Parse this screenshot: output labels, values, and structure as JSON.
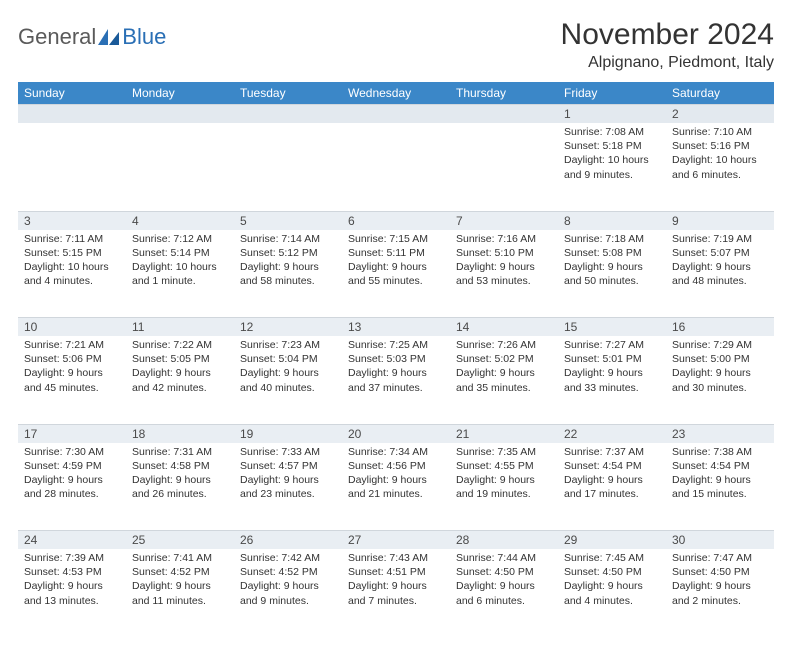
{
  "logo": {
    "general": "General",
    "blue": "Blue"
  },
  "title": "November 2024",
  "subtitle": "Alpignano, Piedmont, Italy",
  "colors": {
    "header_bg": "#3b87c8",
    "header_text": "#ffffff",
    "daynum_bg": "#e9eef3",
    "page_bg": "#ffffff",
    "text": "#333333",
    "logo_gray": "#5a5a5a",
    "logo_blue": "#2a6fb5"
  },
  "day_headers": [
    "Sunday",
    "Monday",
    "Tuesday",
    "Wednesday",
    "Thursday",
    "Friday",
    "Saturday"
  ],
  "weeks": [
    [
      {
        "n": "",
        "sr": "",
        "ss": "",
        "dl": ""
      },
      {
        "n": "",
        "sr": "",
        "ss": "",
        "dl": ""
      },
      {
        "n": "",
        "sr": "",
        "ss": "",
        "dl": ""
      },
      {
        "n": "",
        "sr": "",
        "ss": "",
        "dl": ""
      },
      {
        "n": "",
        "sr": "",
        "ss": "",
        "dl": ""
      },
      {
        "n": "1",
        "sr": "Sunrise: 7:08 AM",
        "ss": "Sunset: 5:18 PM",
        "dl": "Daylight: 10 hours and 9 minutes."
      },
      {
        "n": "2",
        "sr": "Sunrise: 7:10 AM",
        "ss": "Sunset: 5:16 PM",
        "dl": "Daylight: 10 hours and 6 minutes."
      }
    ],
    [
      {
        "n": "3",
        "sr": "Sunrise: 7:11 AM",
        "ss": "Sunset: 5:15 PM",
        "dl": "Daylight: 10 hours and 4 minutes."
      },
      {
        "n": "4",
        "sr": "Sunrise: 7:12 AM",
        "ss": "Sunset: 5:14 PM",
        "dl": "Daylight: 10 hours and 1 minute."
      },
      {
        "n": "5",
        "sr": "Sunrise: 7:14 AM",
        "ss": "Sunset: 5:12 PM",
        "dl": "Daylight: 9 hours and 58 minutes."
      },
      {
        "n": "6",
        "sr": "Sunrise: 7:15 AM",
        "ss": "Sunset: 5:11 PM",
        "dl": "Daylight: 9 hours and 55 minutes."
      },
      {
        "n": "7",
        "sr": "Sunrise: 7:16 AM",
        "ss": "Sunset: 5:10 PM",
        "dl": "Daylight: 9 hours and 53 minutes."
      },
      {
        "n": "8",
        "sr": "Sunrise: 7:18 AM",
        "ss": "Sunset: 5:08 PM",
        "dl": "Daylight: 9 hours and 50 minutes."
      },
      {
        "n": "9",
        "sr": "Sunrise: 7:19 AM",
        "ss": "Sunset: 5:07 PM",
        "dl": "Daylight: 9 hours and 48 minutes."
      }
    ],
    [
      {
        "n": "10",
        "sr": "Sunrise: 7:21 AM",
        "ss": "Sunset: 5:06 PM",
        "dl": "Daylight: 9 hours and 45 minutes."
      },
      {
        "n": "11",
        "sr": "Sunrise: 7:22 AM",
        "ss": "Sunset: 5:05 PM",
        "dl": "Daylight: 9 hours and 42 minutes."
      },
      {
        "n": "12",
        "sr": "Sunrise: 7:23 AM",
        "ss": "Sunset: 5:04 PM",
        "dl": "Daylight: 9 hours and 40 minutes."
      },
      {
        "n": "13",
        "sr": "Sunrise: 7:25 AM",
        "ss": "Sunset: 5:03 PM",
        "dl": "Daylight: 9 hours and 37 minutes."
      },
      {
        "n": "14",
        "sr": "Sunrise: 7:26 AM",
        "ss": "Sunset: 5:02 PM",
        "dl": "Daylight: 9 hours and 35 minutes."
      },
      {
        "n": "15",
        "sr": "Sunrise: 7:27 AM",
        "ss": "Sunset: 5:01 PM",
        "dl": "Daylight: 9 hours and 33 minutes."
      },
      {
        "n": "16",
        "sr": "Sunrise: 7:29 AM",
        "ss": "Sunset: 5:00 PM",
        "dl": "Daylight: 9 hours and 30 minutes."
      }
    ],
    [
      {
        "n": "17",
        "sr": "Sunrise: 7:30 AM",
        "ss": "Sunset: 4:59 PM",
        "dl": "Daylight: 9 hours and 28 minutes."
      },
      {
        "n": "18",
        "sr": "Sunrise: 7:31 AM",
        "ss": "Sunset: 4:58 PM",
        "dl": "Daylight: 9 hours and 26 minutes."
      },
      {
        "n": "19",
        "sr": "Sunrise: 7:33 AM",
        "ss": "Sunset: 4:57 PM",
        "dl": "Daylight: 9 hours and 23 minutes."
      },
      {
        "n": "20",
        "sr": "Sunrise: 7:34 AM",
        "ss": "Sunset: 4:56 PM",
        "dl": "Daylight: 9 hours and 21 minutes."
      },
      {
        "n": "21",
        "sr": "Sunrise: 7:35 AM",
        "ss": "Sunset: 4:55 PM",
        "dl": "Daylight: 9 hours and 19 minutes."
      },
      {
        "n": "22",
        "sr": "Sunrise: 7:37 AM",
        "ss": "Sunset: 4:54 PM",
        "dl": "Daylight: 9 hours and 17 minutes."
      },
      {
        "n": "23",
        "sr": "Sunrise: 7:38 AM",
        "ss": "Sunset: 4:54 PM",
        "dl": "Daylight: 9 hours and 15 minutes."
      }
    ],
    [
      {
        "n": "24",
        "sr": "Sunrise: 7:39 AM",
        "ss": "Sunset: 4:53 PM",
        "dl": "Daylight: 9 hours and 13 minutes."
      },
      {
        "n": "25",
        "sr": "Sunrise: 7:41 AM",
        "ss": "Sunset: 4:52 PM",
        "dl": "Daylight: 9 hours and 11 minutes."
      },
      {
        "n": "26",
        "sr": "Sunrise: 7:42 AM",
        "ss": "Sunset: 4:52 PM",
        "dl": "Daylight: 9 hours and 9 minutes."
      },
      {
        "n": "27",
        "sr": "Sunrise: 7:43 AM",
        "ss": "Sunset: 4:51 PM",
        "dl": "Daylight: 9 hours and 7 minutes."
      },
      {
        "n": "28",
        "sr": "Sunrise: 7:44 AM",
        "ss": "Sunset: 4:50 PM",
        "dl": "Daylight: 9 hours and 6 minutes."
      },
      {
        "n": "29",
        "sr": "Sunrise: 7:45 AM",
        "ss": "Sunset: 4:50 PM",
        "dl": "Daylight: 9 hours and 4 minutes."
      },
      {
        "n": "30",
        "sr": "Sunrise: 7:47 AM",
        "ss": "Sunset: 4:50 PM",
        "dl": "Daylight: 9 hours and 2 minutes."
      }
    ]
  ]
}
